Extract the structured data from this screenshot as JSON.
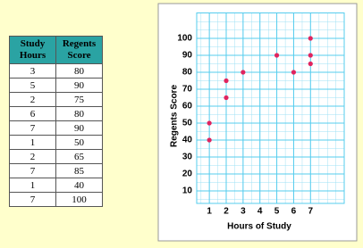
{
  "table": {
    "header": [
      "Study Hours",
      "Regents Score"
    ],
    "rows": [
      [
        3,
        80
      ],
      [
        5,
        90
      ],
      [
        2,
        75
      ],
      [
        6,
        80
      ],
      [
        7,
        90
      ],
      [
        1,
        50
      ],
      [
        2,
        65
      ],
      [
        7,
        85
      ],
      [
        1,
        40
      ],
      [
        7,
        100
      ]
    ]
  },
  "chart_data": {
    "type": "scatter",
    "x_label": "Hours of Study",
    "y_label": "Regents Score",
    "x": [
      3,
      5,
      2,
      6,
      7,
      1,
      2,
      7,
      1,
      7
    ],
    "values": [
      80,
      90,
      75,
      80,
      90,
      50,
      65,
      85,
      40,
      100
    ],
    "color": "#e0245e",
    "xlim": [
      0.25,
      9
    ],
    "xticks": [
      1,
      2,
      3,
      4,
      5,
      6,
      7
    ],
    "ylim": [
      0,
      115
    ],
    "yticks": [
      10,
      20,
      30,
      40,
      50,
      60,
      70,
      80,
      90,
      100
    ],
    "grid": true
  }
}
